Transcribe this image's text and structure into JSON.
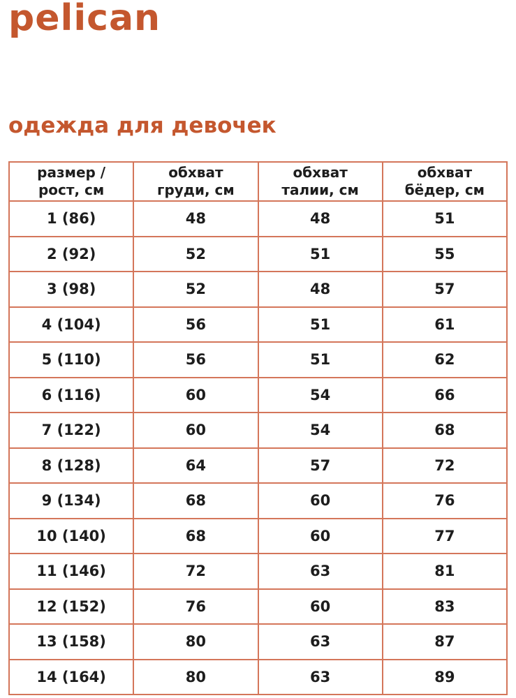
{
  "brand": {
    "logo_text": "pelican"
  },
  "page": {
    "heading": "одежда для девочек"
  },
  "colors": {
    "accent": "#c4572e",
    "table_border": "#d4765a",
    "text": "#1d1d1d"
  },
  "size_table": {
    "columns": [
      "размер /\nрост, см",
      "обхват\nгруди, см",
      "обхват\nталии, см",
      "обхват\nбёдер, см"
    ],
    "rows": [
      [
        "1 (86)",
        "48",
        "48",
        "51"
      ],
      [
        "2 (92)",
        "52",
        "51",
        "55"
      ],
      [
        "3 (98)",
        "52",
        "48",
        "57"
      ],
      [
        "4 (104)",
        "56",
        "51",
        "61"
      ],
      [
        "5 (110)",
        "56",
        "51",
        "62"
      ],
      [
        "6 (116)",
        "60",
        "54",
        "66"
      ],
      [
        "7 (122)",
        "60",
        "54",
        "68"
      ],
      [
        "8 (128)",
        "64",
        "57",
        "72"
      ],
      [
        "9 (134)",
        "68",
        "60",
        "76"
      ],
      [
        "10 (140)",
        "68",
        "60",
        "77"
      ],
      [
        "11 (146)",
        "72",
        "63",
        "81"
      ],
      [
        "12 (152)",
        "76",
        "60",
        "83"
      ],
      [
        "13 (158)",
        "80",
        "63",
        "87"
      ],
      [
        "14 (164)",
        "80",
        "63",
        "89"
      ]
    ]
  }
}
